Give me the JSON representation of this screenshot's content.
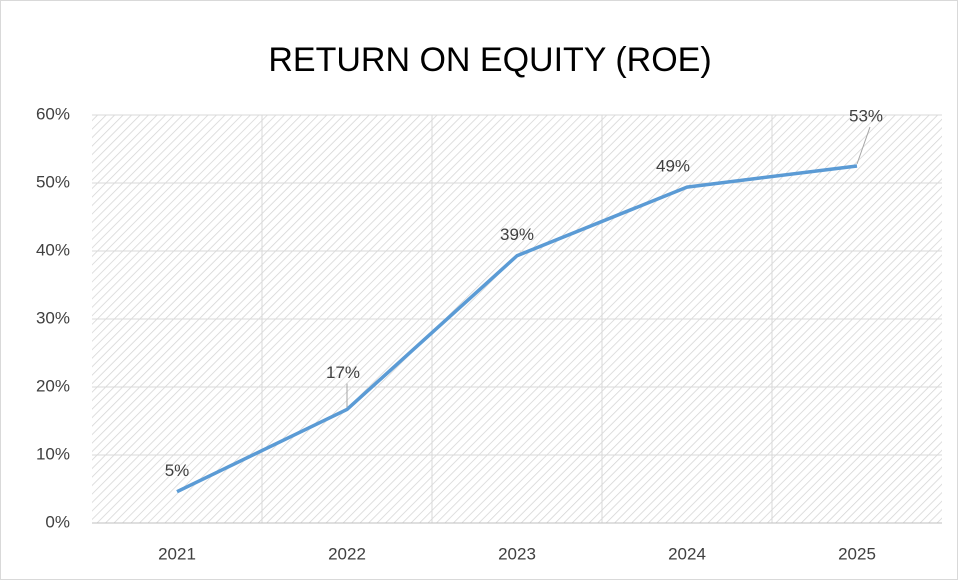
{
  "chart_data": {
    "type": "line",
    "title": "RETURN ON EQUITY (ROE)",
    "categories": [
      "2021",
      "2022",
      "2023",
      "2024",
      "2025"
    ],
    "values": [
      4.6,
      16.7,
      39.3,
      49.4,
      52.5
    ],
    "value_labels": [
      "5%",
      "17%",
      "39%",
      "49%",
      "53%"
    ],
    "color": "#5b9bd5",
    "ylim": [
      0,
      60
    ],
    "yticks": [
      {
        "value": 0,
        "label": "0%"
      },
      {
        "value": 10,
        "label": "10%"
      },
      {
        "value": 20,
        "label": "20%"
      },
      {
        "value": 30,
        "label": "30%"
      },
      {
        "value": 40,
        "label": "40%"
      },
      {
        "value": 50,
        "label": "50%"
      },
      {
        "value": 60,
        "label": "60%"
      }
    ],
    "grid": true
  }
}
